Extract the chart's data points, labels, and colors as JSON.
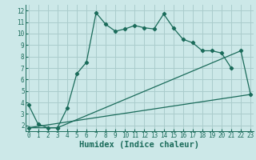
{
  "xlabel": "Humidex (Indice chaleur)",
  "xlim": [
    -0.3,
    23.3
  ],
  "ylim": [
    1.5,
    12.5
  ],
  "xticks": [
    0,
    1,
    2,
    3,
    4,
    5,
    6,
    7,
    8,
    9,
    10,
    11,
    12,
    13,
    14,
    15,
    16,
    17,
    18,
    19,
    20,
    21,
    22,
    23
  ],
  "yticks": [
    2,
    3,
    4,
    5,
    6,
    7,
    8,
    9,
    10,
    11,
    12
  ],
  "bg_color": "#cce8e8",
  "plot_bg_color": "#cce8e8",
  "grid_color": "#aacccc",
  "line_color": "#1a6b5a",
  "line1_x": [
    0,
    1,
    2,
    3,
    4,
    5,
    6,
    7,
    8,
    9,
    10,
    11,
    12,
    13,
    14,
    15,
    16,
    17,
    18,
    19,
    20,
    21
  ],
  "line1_y": [
    3.8,
    2.1,
    1.8,
    1.8,
    3.5,
    6.5,
    7.5,
    11.8,
    10.8,
    10.2,
    10.4,
    10.7,
    10.5,
    10.4,
    11.7,
    10.5,
    9.5,
    9.2,
    8.5,
    8.5,
    8.3,
    7.0
  ],
  "line2_x": [
    0,
    3,
    22,
    23
  ],
  "line2_y": [
    1.8,
    1.8,
    8.5,
    4.7
  ],
  "line3_x": [
    0,
    23
  ],
  "line3_y": [
    1.8,
    4.7
  ],
  "font_color": "#1a6b5a",
  "tick_fontsize": 5.5,
  "xlabel_fontsize": 7.5
}
